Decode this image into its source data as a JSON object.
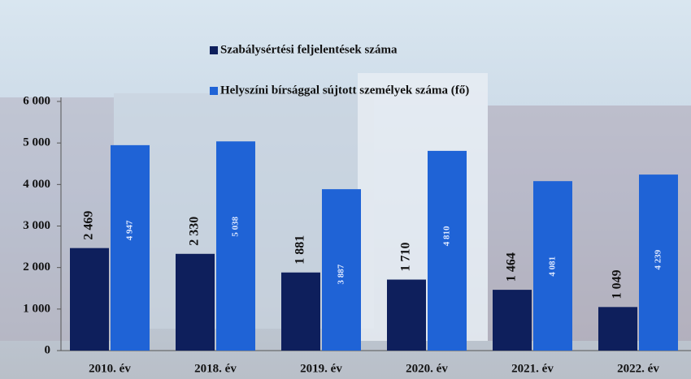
{
  "chart_data": {
    "type": "bar",
    "categories": [
      "2010. év",
      "2018. év",
      "2019. év",
      "2020. év",
      "2021. év",
      "2022. év"
    ],
    "series": [
      {
        "name": "Szabálysértési feljelentések száma",
        "color": "#0e1f5c",
        "values": [
          2469,
          2330,
          1881,
          1710,
          1464,
          1049
        ],
        "value_labels": [
          "2 469",
          "2 330",
          "1 881",
          "1 710",
          "1 464",
          "1 049"
        ]
      },
      {
        "name": "Helyszíni bírsággal sújtott személyek száma (fő)",
        "color": "#1f63d6",
        "values": [
          4947,
          5038,
          3887,
          4810,
          4081,
          4239
        ],
        "value_labels": [
          "4 947",
          "5 038",
          "3 887",
          "4 810",
          "4 081",
          "4 239"
        ]
      }
    ],
    "ylim": [
      0,
      6000
    ],
    "yticks": [
      0,
      {
        "value": 1000,
        "label": "1 000"
      },
      {
        "value": 2000,
        "label": "2 000"
      },
      {
        "value": 3000,
        "label": "3 000"
      },
      {
        "value": 4000,
        "label": "4 000"
      },
      {
        "value": 5000,
        "label": "5 000"
      },
      {
        "value": 6000,
        "label": "6 000"
      }
    ],
    "grid": false
  }
}
